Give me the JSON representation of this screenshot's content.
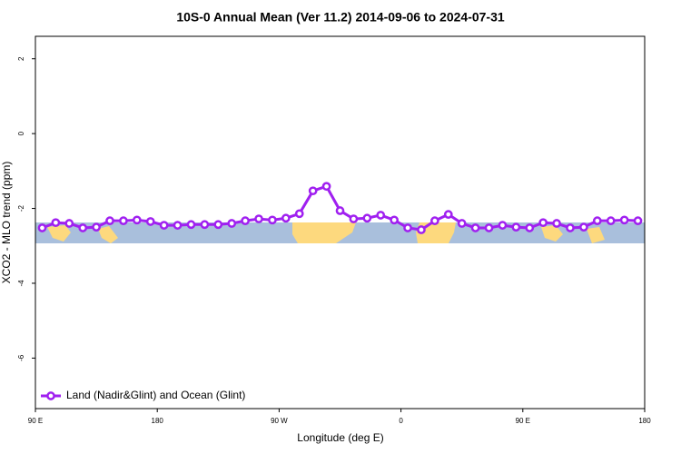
{
  "chart_data": {
    "type": "line",
    "title": "10S-0 Annual Mean (Ver 11.2)   2014-09-06 to 2024-07-31",
    "x_label": "Longitude (deg E)",
    "y_label": "XCO2 - MLO trend (ppm)",
    "x": [
      95,
      105,
      115,
      125,
      135,
      145,
      155,
      165,
      175,
      185,
      195,
      205,
      215,
      225,
      235,
      245,
      255,
      265,
      275,
      285,
      295,
      305,
      315,
      325,
      335,
      345,
      355,
      365,
      375,
      385,
      395,
      405,
      415,
      425,
      435,
      445,
      455,
      465,
      475,
      485,
      495,
      505,
      515,
      525,
      535
    ],
    "series": [
      {
        "name": "Land (Nadir&Glint) and Ocean (Glint)",
        "color": "#a020f0",
        "values": [
          -2.52,
          -2.38,
          -2.4,
          -2.52,
          -2.5,
          -2.33,
          -2.33,
          -2.31,
          -2.35,
          -2.45,
          -2.45,
          -2.43,
          -2.43,
          -2.43,
          -2.4,
          -2.33,
          -2.28,
          -2.31,
          -2.26,
          -2.14,
          -1.53,
          -1.41,
          -2.06,
          -2.28,
          -2.26,
          -2.18,
          -2.31,
          -2.52,
          -2.57,
          -2.33,
          -2.16,
          -2.4,
          -2.52,
          -2.52,
          -2.45,
          -2.5,
          -2.52,
          -2.38,
          -2.4,
          -2.52,
          -2.5,
          -2.33,
          -2.33,
          -2.31,
          -2.33
        ]
      }
    ],
    "xlim": [
      90,
      540
    ],
    "xticks": [
      {
        "value": 90,
        "label": "90 E"
      },
      180,
      {
        "value": 270,
        "label": "90 W"
      },
      {
        "value": 360,
        "label": "0"
      },
      {
        "value": 450,
        "label": "90 E"
      },
      {
        "value": 540,
        "label": "180"
      }
    ],
    "ylim": [
      -7.35,
      2.6
    ],
    "yticks": [
      2,
      0,
      -2,
      -4,
      -6
    ],
    "legend": "bottom-left"
  }
}
